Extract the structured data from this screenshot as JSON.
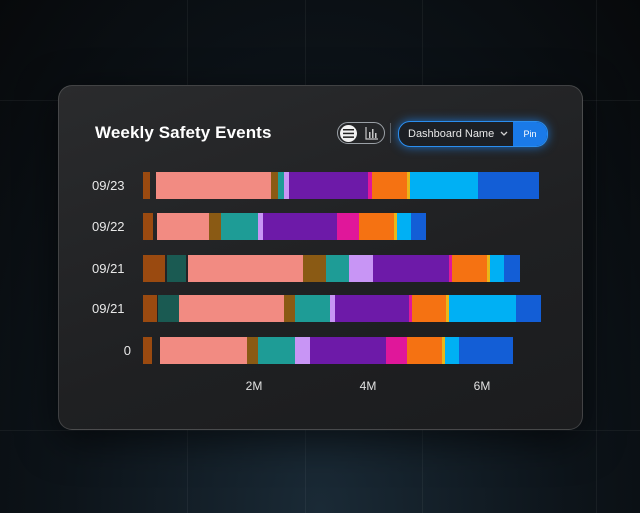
{
  "card": {
    "title": "Weekly Safety Events",
    "view_toggle": {
      "active": "list-icon",
      "inactive": "bar-chart-icon"
    },
    "dashboard_select": {
      "value": "Dashboard Name"
    },
    "pin_label": "Pin"
  },
  "chart_data": {
    "type": "bar",
    "orientation": "horizontal",
    "stacked": true,
    "title": "Weekly Safety Events",
    "categories": [
      "09/23",
      "09/22",
      "09/21",
      "09/21",
      "0"
    ],
    "x_ticks": [
      "2M",
      "4M",
      "6M"
    ],
    "colors": [
      "#9a4a10",
      "#f28b82",
      "#8a5a14",
      "#1e9c96",
      "#c895f5",
      "#6d1aa8",
      "#e0179a",
      "#f57212",
      "#e8b71a",
      "#00b0f4",
      "#135ed6",
      "#1a5a52"
    ],
    "rows": [
      [
        [
          0.0,
          0.12,
          0
        ],
        [
          0.22,
          2.24,
          1
        ],
        [
          2.24,
          2.36,
          2
        ],
        [
          2.36,
          2.48,
          3
        ],
        [
          2.48,
          2.56,
          4
        ],
        [
          2.56,
          3.94,
          5
        ],
        [
          3.94,
          4.02,
          6
        ],
        [
          4.02,
          4.64,
          7
        ],
        [
          4.64,
          4.69,
          8
        ],
        [
          4.69,
          5.88,
          9
        ],
        [
          5.88,
          6.95,
          10
        ]
      ],
      [
        [
          0.0,
          0.17,
          0
        ],
        [
          0.24,
          1.16,
          1
        ],
        [
          1.16,
          1.36,
          2
        ],
        [
          1.36,
          2.01,
          3
        ],
        [
          2.01,
          2.11,
          4
        ],
        [
          2.11,
          3.41,
          5
        ],
        [
          3.41,
          3.79,
          6
        ],
        [
          3.79,
          4.41,
          7
        ],
        [
          4.41,
          4.46,
          8
        ],
        [
          4.46,
          4.71,
          9
        ],
        [
          4.71,
          4.96,
          10
        ]
      ],
      [
        [
          0.0,
          0.39,
          0
        ],
        [
          0.42,
          0.76,
          11
        ],
        [
          0.79,
          2.81,
          1
        ],
        [
          2.81,
          3.21,
          2
        ],
        [
          3.21,
          3.62,
          3
        ],
        [
          3.62,
          4.04,
          4
        ],
        [
          4.04,
          5.37,
          5
        ],
        [
          5.37,
          5.42,
          6
        ],
        [
          5.42,
          6.04,
          7
        ],
        [
          6.04,
          6.09,
          8
        ],
        [
          6.09,
          6.33,
          9
        ],
        [
          6.33,
          6.61,
          10
        ]
      ],
      [
        [
          0.0,
          0.24,
          0
        ],
        [
          0.27,
          0.64,
          11
        ],
        [
          0.64,
          2.47,
          1
        ],
        [
          2.47,
          2.66,
          2
        ],
        [
          2.66,
          3.28,
          3
        ],
        [
          3.28,
          3.36,
          4
        ],
        [
          3.36,
          4.67,
          5
        ],
        [
          4.67,
          4.72,
          6
        ],
        [
          4.72,
          5.31,
          7
        ],
        [
          5.31,
          5.36,
          8
        ],
        [
          5.36,
          6.55,
          9
        ],
        [
          6.55,
          6.98,
          10
        ]
      ],
      [
        [
          0.0,
          0.16,
          0
        ],
        [
          0.29,
          1.83,
          1
        ],
        [
          1.83,
          2.02,
          2
        ],
        [
          2.02,
          2.66,
          3
        ],
        [
          2.66,
          2.93,
          4
        ],
        [
          2.93,
          4.26,
          5
        ],
        [
          4.26,
          4.63,
          6
        ],
        [
          4.63,
          5.24,
          7
        ],
        [
          5.24,
          5.29,
          8
        ],
        [
          5.29,
          5.54,
          9
        ],
        [
          5.54,
          6.49,
          10
        ]
      ]
    ]
  }
}
